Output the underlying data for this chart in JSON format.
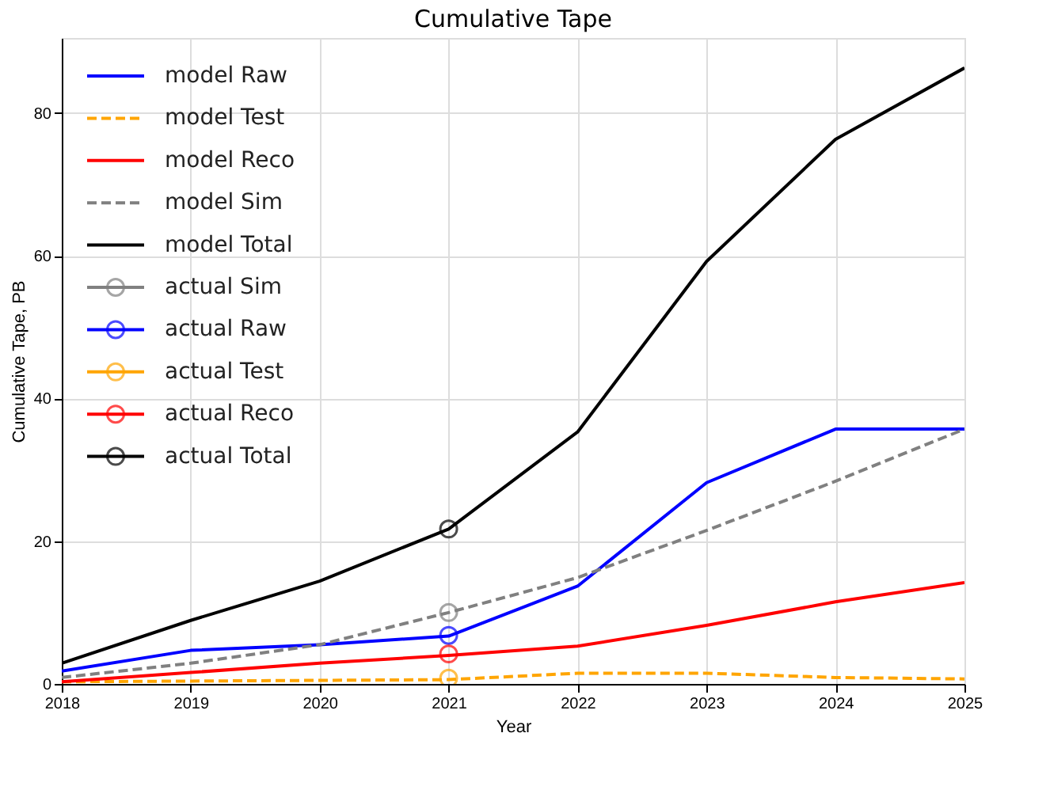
{
  "chart_data": {
    "type": "line",
    "title": "Cumulative Tape",
    "xlabel": "Year",
    "ylabel": "Cumulative Tape, PB",
    "x": [
      2018,
      2019,
      2020,
      2021,
      2022,
      2023,
      2024,
      2025
    ],
    "xlim": [
      2018,
      2025
    ],
    "xticks": [
      2018,
      2019,
      2020,
      2021,
      2022,
      2023,
      2024,
      2025
    ],
    "ylim": [
      0,
      90.5
    ],
    "yticks": [
      0,
      20,
      40,
      60,
      80
    ],
    "grid": true,
    "legend": "top left",
    "series": [
      {
        "name": "model Raw",
        "color": "#0000ff",
        "line_style": "solid",
        "marker": "none",
        "values": [
          1.8,
          4.7,
          5.5,
          6.7,
          13.7,
          28.2,
          35.7,
          35.7
        ]
      },
      {
        "name": "model Test",
        "color": "#ffa500",
        "line_style": "dashed",
        "marker": "none",
        "values": [
          0.3,
          0.4,
          0.5,
          0.6,
          1.5,
          1.5,
          0.9,
          0.7
        ]
      },
      {
        "name": "model Reco",
        "color": "#ff0000",
        "line_style": "solid",
        "marker": "none",
        "values": [
          0.3,
          1.6,
          2.9,
          4.0,
          5.3,
          8.2,
          11.5,
          14.2
        ]
      },
      {
        "name": "model Sim",
        "color": "#808080",
        "line_style": "dashed",
        "marker": "none",
        "values": [
          0.9,
          2.9,
          5.5,
          10.0,
          14.9,
          21.5,
          28.4,
          35.7
        ]
      },
      {
        "name": "model Total",
        "color": "#000000",
        "line_style": "solid",
        "marker": "none",
        "values": [
          2.9,
          8.9,
          14.4,
          21.7,
          35.3,
          59.2,
          76.3,
          86.3
        ]
      },
      {
        "name": "actual Sim",
        "color": "#808080",
        "line_style": "solid",
        "marker": "circle",
        "values": [
          null,
          null,
          null,
          10.0,
          null,
          null,
          null,
          null
        ]
      },
      {
        "name": "actual Raw",
        "color": "#0000ff",
        "line_style": "solid",
        "marker": "circle",
        "values": [
          null,
          null,
          null,
          6.8,
          null,
          null,
          null,
          null
        ]
      },
      {
        "name": "actual Test",
        "color": "#ffa500",
        "line_style": "solid",
        "marker": "circle",
        "values": [
          null,
          null,
          null,
          0.8,
          null,
          null,
          null,
          null
        ]
      },
      {
        "name": "actual Reco",
        "color": "#ff0000",
        "line_style": "solid",
        "marker": "circle",
        "values": [
          null,
          null,
          null,
          4.2,
          null,
          null,
          null,
          null
        ]
      },
      {
        "name": "actual Total",
        "color": "#000000",
        "line_style": "solid",
        "marker": "circle",
        "values": [
          null,
          null,
          null,
          21.7,
          null,
          null,
          null,
          null
        ]
      }
    ]
  }
}
